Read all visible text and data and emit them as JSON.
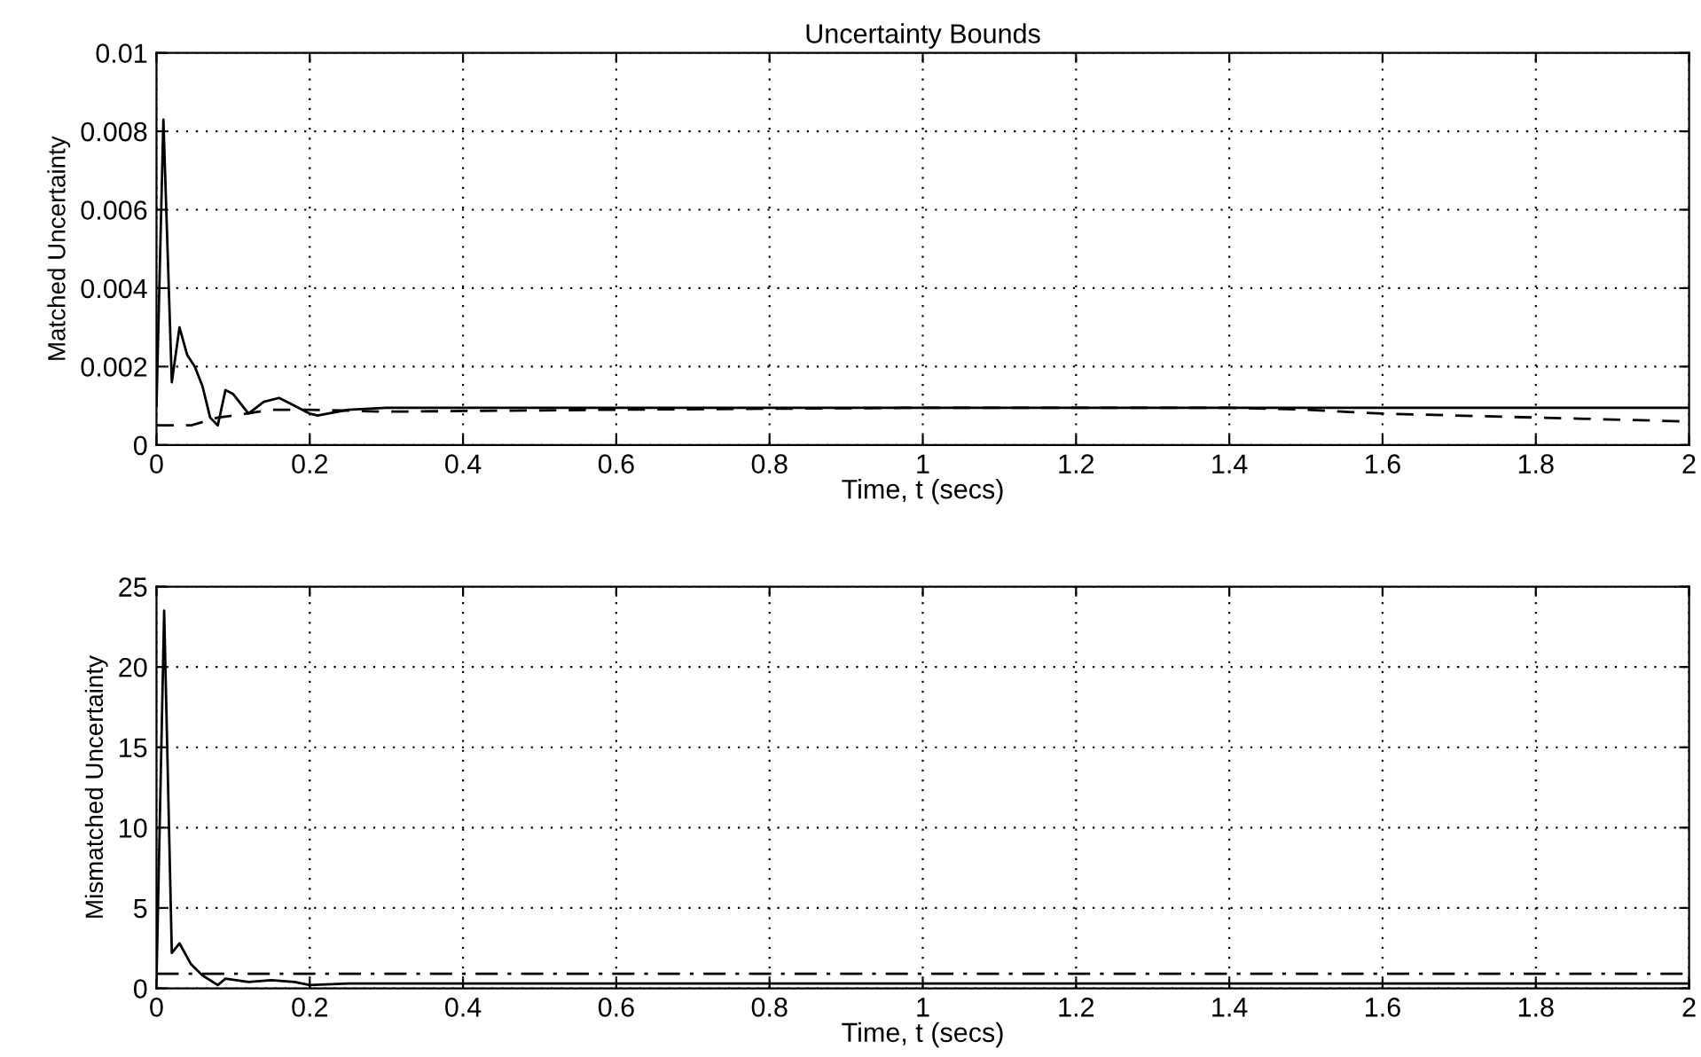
{
  "chart_data": [
    {
      "type": "line",
      "title": "Uncertainty Bounds",
      "xlabel": "Time, t (secs)",
      "ylabel": "Matched Uncertainty",
      "xlim": [
        0,
        2
      ],
      "xticks": [
        0,
        0.2,
        0.4,
        0.6,
        0.8,
        1,
        1.2,
        1.4,
        1.6,
        1.8,
        2
      ],
      "ylim": [
        0,
        0.01
      ],
      "yticks": [
        0,
        0.002,
        0.004,
        0.006,
        0.008,
        0.01
      ],
      "grid": true,
      "series": [
        {
          "color": "#000000",
          "line_style": "solid",
          "x": [
            0,
            0.009,
            0.02,
            0.03,
            0.04,
            0.05,
            0.06,
            0.07,
            0.08,
            0.09,
            0.1,
            0.12,
            0.14,
            0.16,
            0.18,
            0.2,
            0.21,
            0.25,
            0.3,
            0.6,
            1.0,
            1.4,
            1.6,
            2.0
          ],
          "values": [
            0.001,
            0.0083,
            0.0016,
            0.003,
            0.0023,
            0.002,
            0.0015,
            0.0007,
            0.0005,
            0.0014,
            0.0013,
            0.0008,
            0.0011,
            0.0012,
            0.001,
            0.0008,
            0.00075,
            0.0009,
            0.00095,
            0.00095,
            0.00095,
            0.00095,
            0.00095,
            0.00095
          ]
        },
        {
          "color": "#000000",
          "line_style": "dashed",
          "x": [
            0,
            0.045,
            0.08,
            0.1,
            0.15,
            0.2,
            0.3,
            0.6,
            1.0,
            1.4,
            1.5,
            1.6,
            1.8,
            2.0
          ],
          "values": [
            0.0005,
            0.0005,
            0.0007,
            0.00075,
            0.0009,
            0.0009,
            0.00085,
            0.0009,
            0.00095,
            0.00095,
            0.0009,
            0.0008,
            0.0007,
            0.0006
          ]
        }
      ]
    },
    {
      "type": "line",
      "xlabel": "Time, t (secs)",
      "ylabel": "Mismatched Uncertainty",
      "xlim": [
        0,
        2
      ],
      "xticks": [
        0,
        0.2,
        0.4,
        0.6,
        0.8,
        1,
        1.2,
        1.4,
        1.6,
        1.8,
        2
      ],
      "ylim": [
        0,
        25
      ],
      "yticks": [
        0,
        5,
        10,
        15,
        20,
        25
      ],
      "grid": true,
      "series": [
        {
          "color": "#000000",
          "line_style": "solid",
          "x": [
            0,
            0.01,
            0.02,
            0.03,
            0.045,
            0.06,
            0.08,
            0.09,
            0.12,
            0.15,
            0.18,
            0.2,
            0.25,
            0.5,
            1.0,
            1.5,
            2.0
          ],
          "values": [
            0.5,
            23.5,
            2.2,
            2.8,
            1.5,
            0.8,
            0.2,
            0.6,
            0.4,
            0.5,
            0.4,
            0.2,
            0.3,
            0.3,
            0.3,
            0.3,
            0.3
          ]
        },
        {
          "color": "#000000",
          "line_style": "dashdot",
          "x": [
            0,
            2.0
          ],
          "values": [
            0.9,
            0.9
          ]
        }
      ]
    }
  ]
}
